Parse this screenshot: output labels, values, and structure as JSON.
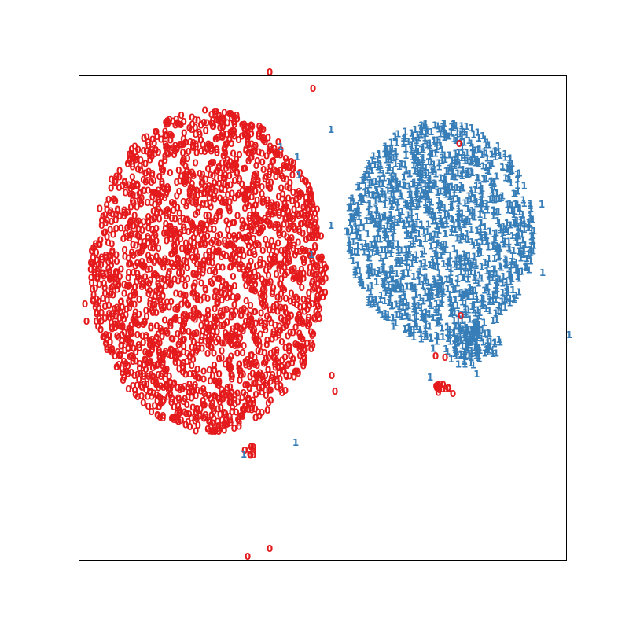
{
  "chart_data": {
    "type": "scatter",
    "title": "",
    "xlabel": "",
    "ylabel": "",
    "axes_ticks": false,
    "grid": false,
    "legend": "none",
    "marker_style": "digit glyph equal to class label",
    "series": [
      {
        "name": "",
        "label": "0",
        "color": "#e41a1c",
        "approx_count": 2500
      },
      {
        "name": "",
        "label": "1",
        "color": "#377eb8",
        "approx_count": 1500
      }
    ],
    "clusters": [
      {
        "label": "0",
        "description": "large dense blob (left)"
      },
      {
        "label": "1",
        "description": "medium dense blob (right)"
      },
      {
        "label": "0",
        "description": "small tight group below the right blob"
      }
    ]
  }
}
